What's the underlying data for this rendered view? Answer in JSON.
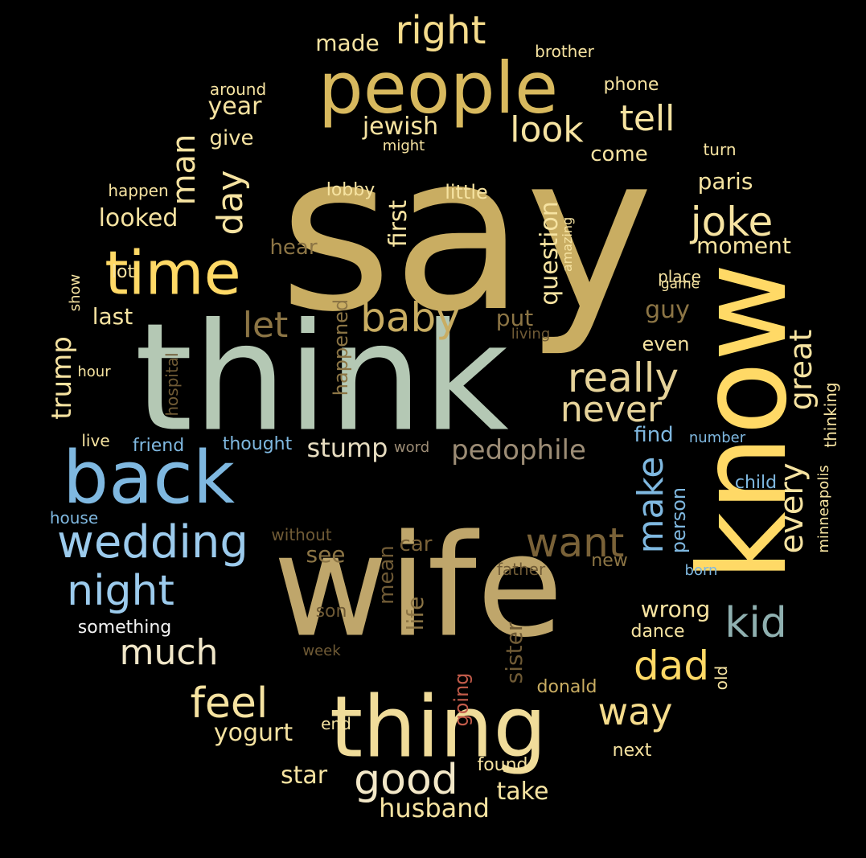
{
  "palette": {
    "gold": "#c9ad62",
    "light_gold": "#f5dc8c",
    "yellow": "#ffd966",
    "pale_yellow": "#f6e3a1",
    "sage": "#b4c8b4",
    "blue": "#7fb8e0",
    "light_blue": "#9ccbed",
    "tan": "#9c8150",
    "gray_beige": "#b8a88a",
    "dark_tan": "#6f5a35",
    "brown": "#7a6238",
    "teal_gray": "#8fb0b0",
    "red": "#c25b4a",
    "white": "#f3f3f3"
  },
  "words": [
    {
      "text": "say",
      "color": "#c9ad62"
    },
    {
      "text": "think",
      "color": "#b4c8b4"
    },
    {
      "text": "know",
      "color": "#ffd966"
    },
    {
      "text": "wife",
      "color": "#bfa66b"
    },
    {
      "text": "people",
      "color": "#d8b95e"
    },
    {
      "text": "thing",
      "color": "#f0dc9a"
    },
    {
      "text": "back",
      "color": "#7fb8e0"
    },
    {
      "text": "time",
      "color": "#ffd966"
    },
    {
      "text": "wedding",
      "color": "#9ccbed"
    },
    {
      "text": "night",
      "color": "#9ccbed"
    },
    {
      "text": "right",
      "color": "#f5dc8c"
    },
    {
      "text": "tell",
      "color": "#f6e3a1"
    },
    {
      "text": "look",
      "color": "#f6e3a1"
    },
    {
      "text": "joke",
      "color": "#f6e3a1"
    },
    {
      "text": "baby",
      "color": "#c9ad62"
    },
    {
      "text": "let",
      "color": "#8c7545"
    },
    {
      "text": "really",
      "color": "#e6d39a"
    },
    {
      "text": "never",
      "color": "#e6d39a"
    },
    {
      "text": "dad",
      "color": "#ffd966"
    },
    {
      "text": "kid",
      "color": "#8fb0b0"
    },
    {
      "text": "good",
      "color": "#f3e8c8"
    },
    {
      "text": "want",
      "color": "#7a6238"
    },
    {
      "text": "feel",
      "color": "#f6e3a1"
    },
    {
      "text": "way",
      "color": "#f5dc8c"
    },
    {
      "text": "much",
      "color": "#f0e6c8"
    },
    {
      "text": "pedophile",
      "color": "#9c8c75"
    },
    {
      "text": "husband",
      "color": "#f6e3a1"
    },
    {
      "text": "stump",
      "color": "#e6dcc0"
    },
    {
      "text": "yogurt",
      "color": "#f6e3a1"
    },
    {
      "text": "star",
      "color": "#f6e3a1"
    },
    {
      "text": "take",
      "color": "#f6e3a1"
    },
    {
      "text": "looked",
      "color": "#f6e3a1"
    },
    {
      "text": "moment",
      "color": "#f6e3a1"
    },
    {
      "text": "jewish",
      "color": "#f6e3a1"
    },
    {
      "text": "year",
      "color": "#f6e3a1"
    },
    {
      "text": "made",
      "color": "#f6e3a1"
    },
    {
      "text": "give",
      "color": "#f6e3a1"
    },
    {
      "text": "come",
      "color": "#f6e3a1"
    },
    {
      "text": "paris",
      "color": "#f6e3a1"
    },
    {
      "text": "little",
      "color": "#f6e3a1"
    },
    {
      "text": "guy",
      "color": "#8c7545"
    },
    {
      "text": "even",
      "color": "#f6e3a1"
    },
    {
      "text": "put",
      "color": "#8c7545"
    },
    {
      "text": "last",
      "color": "#f6e3a1"
    },
    {
      "text": "hear",
      "color": "#8c7545"
    },
    {
      "text": "see",
      "color": "#8c7545"
    },
    {
      "text": "car",
      "color": "#7a6238"
    },
    {
      "text": "wrong",
      "color": "#f6e3a1"
    },
    {
      "text": "dance",
      "color": "#f6e3a1"
    },
    {
      "text": "find",
      "color": "#7fb8e0"
    },
    {
      "text": "child",
      "color": "#7fb8e0"
    },
    {
      "text": "lobby",
      "color": "#f6e3a1"
    },
    {
      "text": "lot",
      "color": "#f6e3a1"
    },
    {
      "text": "brother",
      "color": "#f6e3a1"
    },
    {
      "text": "phone",
      "color": "#f6e3a1"
    },
    {
      "text": "around",
      "color": "#f6e3a1"
    },
    {
      "text": "might",
      "color": "#f6e3a1"
    },
    {
      "text": "turn",
      "color": "#f6e3a1"
    },
    {
      "text": "happen",
      "color": "#f6e3a1"
    },
    {
      "text": "place",
      "color": "#f6e3a1"
    },
    {
      "text": "game",
      "color": "#f6e3a1"
    },
    {
      "text": "living",
      "color": "#6f5a35"
    },
    {
      "text": "hour",
      "color": "#f6e3a1"
    },
    {
      "text": "live",
      "color": "#f6e3a1"
    },
    {
      "text": "friend",
      "color": "#7fb8e0"
    },
    {
      "text": "thought",
      "color": "#7fb8e0"
    },
    {
      "text": "word",
      "color": "#9c8c75"
    },
    {
      "text": "number",
      "color": "#7fb8e0"
    },
    {
      "text": "house",
      "color": "#7fb8e0"
    },
    {
      "text": "without",
      "color": "#6f5a35"
    },
    {
      "text": "father",
      "color": "#6f5a35"
    },
    {
      "text": "new",
      "color": "#8c7545"
    },
    {
      "text": "born",
      "color": "#7fb8e0"
    },
    {
      "text": "something",
      "color": "#f3f3f3"
    },
    {
      "text": "son",
      "color": "#6f5a35"
    },
    {
      "text": "week",
      "color": "#6f5a35"
    },
    {
      "text": "donald",
      "color": "#c9ad62"
    },
    {
      "text": "end",
      "color": "#f6e3a1"
    },
    {
      "text": "found",
      "color": "#f6e3a1"
    },
    {
      "text": "next",
      "color": "#f6e3a1"
    },
    {
      "text": "man",
      "color": "#f6e3a1"
    },
    {
      "text": "day",
      "color": "#f6e3a1"
    },
    {
      "text": "first",
      "color": "#f6e3a1"
    },
    {
      "text": "question",
      "color": "#f6e3a1"
    },
    {
      "text": "amazing",
      "color": "#f6e3a1"
    },
    {
      "text": "show",
      "color": "#f6e3a1"
    },
    {
      "text": "trump",
      "color": "#f6e3a1"
    },
    {
      "text": "hospital",
      "color": "#6f5a35"
    },
    {
      "text": "happened",
      "color": "#8c7545"
    },
    {
      "text": "make",
      "color": "#7fb8e0"
    },
    {
      "text": "person",
      "color": "#7fb8e0"
    },
    {
      "text": "every",
      "color": "#f6e3a1"
    },
    {
      "text": "great",
      "color": "#f6e3a1"
    },
    {
      "text": "thinking",
      "color": "#f6e3a1"
    },
    {
      "text": "minneapolis",
      "color": "#f6e3a1"
    },
    {
      "text": "mean",
      "color": "#6f5a35"
    },
    {
      "text": "life",
      "color": "#8c7545"
    },
    {
      "text": "sister",
      "color": "#6f5a35"
    },
    {
      "text": "going",
      "color": "#c25b4a"
    },
    {
      "text": "old",
      "color": "#f6e3a1"
    }
  ]
}
